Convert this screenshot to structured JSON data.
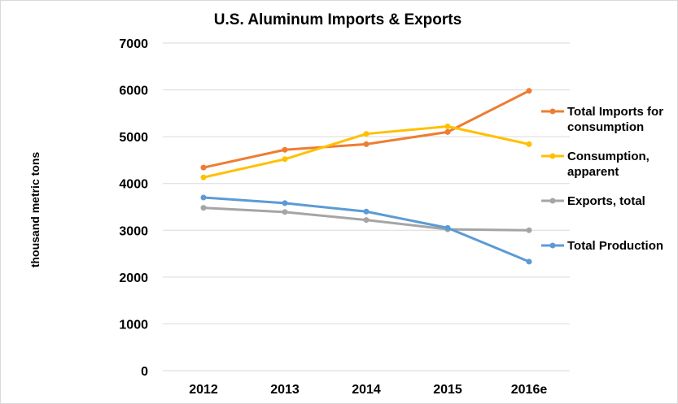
{
  "chart_data": {
    "type": "line",
    "title": "U.S. Aluminum Imports & Exports",
    "xlabel": "",
    "ylabel": "thousand metric tons",
    "categories": [
      "2012",
      "2013",
      "2014",
      "2015",
      "2016e"
    ],
    "ylim": [
      0,
      7000
    ],
    "yticks": [
      0,
      1000,
      2000,
      3000,
      4000,
      5000,
      6000,
      7000
    ],
    "grid": "horizontal",
    "legend_position": "right",
    "series": [
      {
        "name": "Total Imports for consumption",
        "legend_lines": [
          "Total Imports for",
          "consumption"
        ],
        "color": "#ED7D31",
        "values": [
          4340,
          4720,
          4840,
          5100,
          5980
        ]
      },
      {
        "name": "Consumption, apparent",
        "legend_lines": [
          "Consumption,",
          "apparent"
        ],
        "color": "#FFC000",
        "values": [
          4130,
          4520,
          5060,
          5220,
          4840
        ]
      },
      {
        "name": "Exports, total",
        "legend_lines": [
          "Exports, total"
        ],
        "color": "#A5A5A5",
        "values": [
          3480,
          3390,
          3220,
          3020,
          3000
        ]
      },
      {
        "name": "Total Production",
        "legend_lines": [
          "Total Production"
        ],
        "color": "#5B9BD5",
        "values": [
          3700,
          3580,
          3400,
          3050,
          2330
        ]
      }
    ]
  }
}
